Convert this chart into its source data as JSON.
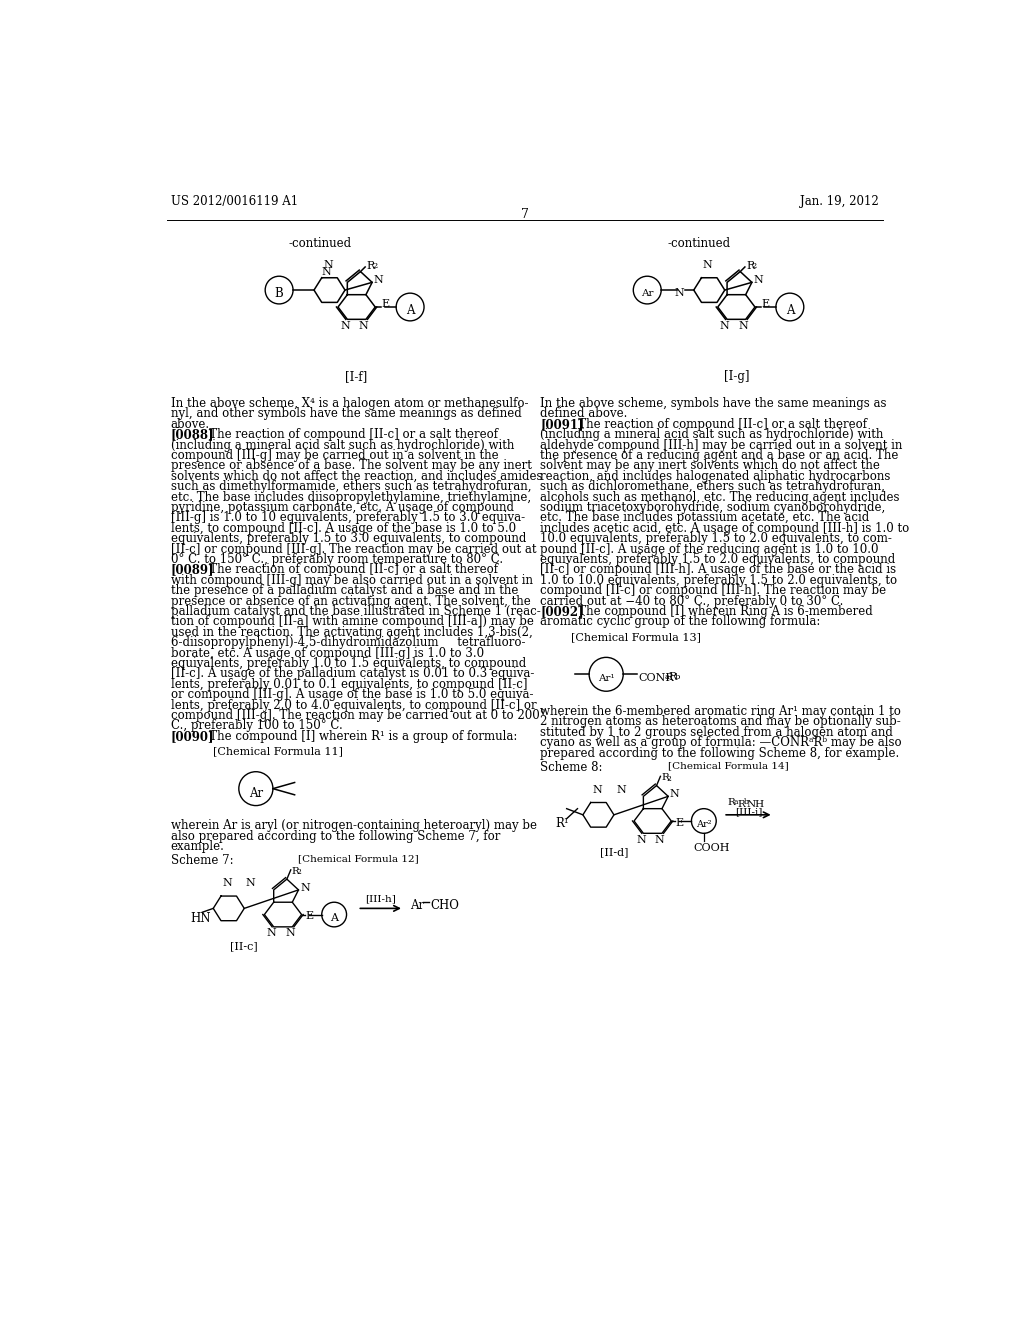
{
  "background_color": "#ffffff",
  "header_left": "US 2012/0016119 A1",
  "header_right": "Jan. 19, 2012",
  "page_number": "7",
  "col1_text": [
    [
      "normal",
      "In the above scheme, X⁴ is a halogen atom or methanesulfo-"
    ],
    [
      "normal",
      "nyl, and other symbols have the same meanings as defined"
    ],
    [
      "normal",
      "above."
    ],
    [
      "bold_para",
      "[0088]",
      "   The reaction of compound [II-c] or a salt thereof"
    ],
    [
      "normal",
      "(including a mineral acid salt such as hydrochloride) with"
    ],
    [
      "normal",
      "compound [III-g] may be carried out in a solvent in the"
    ],
    [
      "normal",
      "presence or absence of a base. The solvent may be any inert"
    ],
    [
      "normal",
      "solvents which do not affect the reaction, and includes amides"
    ],
    [
      "normal",
      "such as dimethylformamide, ethers such as tetrahydrofuran,"
    ],
    [
      "normal",
      "etc. The base includes diisopropylethylamine, triethylamine,"
    ],
    [
      "normal",
      "pyridine, potassium carbonate, etc. A usage of compound"
    ],
    [
      "normal",
      "[III-g] is 1.0 to 10 equivalents, preferably 1.5 to 3.0 equiva-"
    ],
    [
      "normal",
      "lents, to compound [II-c]. A usage of the base is 1.0 to 5.0"
    ],
    [
      "normal",
      "equivalents, preferably 1.5 to 3.0 equivalents, to compound"
    ],
    [
      "normal",
      "[II-c] or compound [III-g]. The reaction may be carried out at"
    ],
    [
      "normal",
      "0° C. to 150° C., preferably room temperature to 80° C."
    ],
    [
      "bold_para",
      "[0089]",
      "   The reaction of compound [II-c] or a salt thereof"
    ],
    [
      "normal",
      "with compound [III-g] may be also carried out in a solvent in"
    ],
    [
      "normal",
      "the presence of a palladium catalyst and a base and in the"
    ],
    [
      "normal",
      "presence or absence of an activating agent. The solvent, the"
    ],
    [
      "normal",
      "palladium catalyst and the base illustrated in Scheme 1 (reac-"
    ],
    [
      "normal",
      "tion of compound [II-a] with amine compound [III-a]) may be"
    ],
    [
      "normal",
      "used in the reaction. The activating agent includes 1,3-bis(2,"
    ],
    [
      "normal",
      "6-diisopropylphenyl)-4,5-dihydroimidazolium     tetrafluoro-"
    ],
    [
      "normal",
      "borate, etc. A usage of compound [III-g] is 1.0 to 3.0"
    ],
    [
      "normal",
      "equivalents, preferably 1.0 to 1.5 equivalents, to compound"
    ],
    [
      "normal",
      "[II-c]. A usage of the palladium catalyst is 0.01 to 0.3 equiva-"
    ],
    [
      "normal",
      "lents, preferably 0.01 to 0.1 equivalents, to compound [II-c]"
    ],
    [
      "normal",
      "or compound [III-g]. A usage of the base is 1.0 to 5.0 equiva-"
    ],
    [
      "normal",
      "lents, preferably 2.0 to 4.0 equivalents, to compound [II-c] or"
    ],
    [
      "normal",
      "compound [III-g]. The reaction may be carried out at 0 to 200°"
    ],
    [
      "normal",
      "C., preferably 100 to 150° C."
    ],
    [
      "bold_para",
      "[0090]",
      "   The compound [I] wherein R¹ is a group of formula:"
    ]
  ],
  "col2_text": [
    [
      "normal",
      "In the above scheme, symbols have the same meanings as"
    ],
    [
      "normal",
      "defined above."
    ],
    [
      "bold_para",
      "[0091]",
      "   The reaction of compound [II-c] or a salt thereof"
    ],
    [
      "normal",
      "(including a mineral acid salt such as hydrochloride) with"
    ],
    [
      "normal",
      "aldehyde compound [III-h] may be carried out in a solvent in"
    ],
    [
      "normal",
      "the presence of a reducing agent and a base or an acid. The"
    ],
    [
      "normal",
      "solvent may be any inert solvents which do not affect the"
    ],
    [
      "normal",
      "reaction, and includes halogenated aliphatic hydrocarbons"
    ],
    [
      "normal",
      "such as dichloromethane, ethers such as tetrahydrofuran,"
    ],
    [
      "normal",
      "alcohols such as methanol, etc. The reducing agent includes"
    ],
    [
      "normal",
      "sodium triacetoxyborohydride, sodium cyanoborohydride,"
    ],
    [
      "normal",
      "etc. The base includes potassium acetate, etc. The acid"
    ],
    [
      "normal",
      "includes acetic acid, etc. A usage of compound [III-h] is 1.0 to"
    ],
    [
      "normal",
      "10.0 equivalents, preferably 1.5 to 2.0 equivalents, to com-"
    ],
    [
      "normal",
      "pound [II-c]. A usage of the reducing agent is 1.0 to 10.0"
    ],
    [
      "normal",
      "equivalents, preferably 1.5 to 2.0 equivalents, to compound"
    ],
    [
      "normal",
      "[II-c] or compound [III-h]. A usage of the base or the acid is"
    ],
    [
      "normal",
      "1.0 to 10.0 equivalents, preferably 1.5 to 2.0 equivalents, to"
    ],
    [
      "normal",
      "compound [II-c] or compound [III-h]. The reaction may be"
    ],
    [
      "normal",
      "carried out at −40 to 80° C., preferably 0 to 30° C."
    ],
    [
      "bold_para",
      "[0092]",
      "   The compound [I] wherein Ring A is 6-membered"
    ],
    [
      "normal",
      "aromatic cyclic group of the following formula:"
    ]
  ],
  "bottom_col1_text": [
    [
      "normal",
      "wherein Ar is aryl (or nitrogen-containing heteroaryl) may be"
    ],
    [
      "normal",
      "also prepared according to the following Scheme 7, for"
    ],
    [
      "normal",
      "example."
    ]
  ],
  "bottom_col2_text": [
    [
      "normal",
      "wherein the 6-membered aromatic ring Ar¹ may contain 1 to"
    ],
    [
      "normal",
      "2 nitrogen atoms as heteroatoms and may be optionally sub-"
    ],
    [
      "normal",
      "stituted by 1 to 2 groups selected from a halogen atom and"
    ],
    [
      "normal",
      "cyano as well as a group of formula: —CONRᵃRᵇ may be also"
    ],
    [
      "normal",
      "prepared according to the following Scheme 8, for example."
    ]
  ]
}
